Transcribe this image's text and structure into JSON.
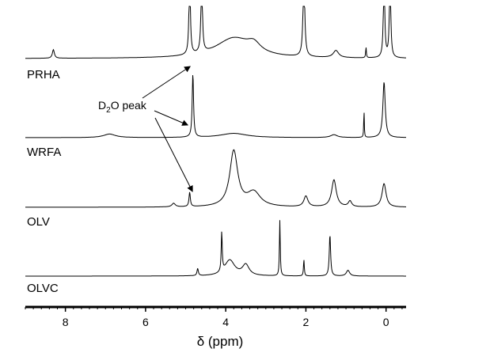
{
  "chart_data": {
    "type": "line",
    "title": "",
    "xlabel": "δ (ppm)",
    "ylabel": "",
    "xlim": [
      9.0,
      -0.5
    ],
    "x_reversed": true,
    "x_ticks": [
      8,
      6,
      4,
      2,
      0
    ],
    "x_tick_labels": [
      "8",
      "6",
      "4",
      "2",
      "0"
    ],
    "y_axis_shown": false,
    "grid": false,
    "legend": "none",
    "annotation": {
      "text_main": "D",
      "text_sub": "2",
      "text_rest": "O peak",
      "points_to_ppm": 4.79
    },
    "series": [
      {
        "name": "PRHA",
        "peaks": [
          {
            "ppm": 8.3,
            "height": 0.12,
            "width": 0.03
          },
          {
            "ppm": 4.9,
            "height": 1.2,
            "width": 0.02
          },
          {
            "ppm": 4.6,
            "height": 1.2,
            "width": 0.02
          },
          {
            "ppm": 3.8,
            "height": 0.28,
            "width": 0.55
          },
          {
            "ppm": 3.3,
            "height": 0.12,
            "width": 0.2
          },
          {
            "ppm": 2.05,
            "height": 1.2,
            "width": 0.025
          },
          {
            "ppm": 1.25,
            "height": 0.1,
            "width": 0.08
          },
          {
            "ppm": 0.5,
            "height": 0.15,
            "width": 0.01
          },
          {
            "ppm": 0.05,
            "height": 1.2,
            "width": 0.02
          },
          {
            "ppm": -0.1,
            "height": 1.2,
            "width": 0.02
          }
        ]
      },
      {
        "name": "WRFA",
        "peaks": [
          {
            "ppm": 6.9,
            "height": 0.05,
            "width": 0.18
          },
          {
            "ppm": 4.82,
            "height": 0.9,
            "width": 0.02
          },
          {
            "ppm": 3.8,
            "height": 0.06,
            "width": 0.4
          },
          {
            "ppm": 1.3,
            "height": 0.04,
            "width": 0.1
          },
          {
            "ppm": 0.55,
            "height": 0.4,
            "width": 0.008
          },
          {
            "ppm": 0.05,
            "height": 0.78,
            "width": 0.035
          }
        ]
      },
      {
        "name": "OLV",
        "peaks": [
          {
            "ppm": 5.3,
            "height": 0.05,
            "width": 0.05
          },
          {
            "ppm": 4.9,
            "height": 0.2,
            "width": 0.02
          },
          {
            "ppm": 3.8,
            "height": 0.78,
            "width": 0.12
          },
          {
            "ppm": 3.3,
            "height": 0.2,
            "width": 0.2
          },
          {
            "ppm": 2.0,
            "height": 0.15,
            "width": 0.06
          },
          {
            "ppm": 1.3,
            "height": 0.38,
            "width": 0.07
          },
          {
            "ppm": 0.9,
            "height": 0.08,
            "width": 0.05
          },
          {
            "ppm": 0.05,
            "height": 0.33,
            "width": 0.06
          }
        ]
      },
      {
        "name": "OLVC",
        "peaks": [
          {
            "ppm": 4.7,
            "height": 0.1,
            "width": 0.02
          },
          {
            "ppm": 4.1,
            "height": 0.55,
            "width": 0.015
          },
          {
            "ppm": 3.9,
            "height": 0.22,
            "width": 0.15
          },
          {
            "ppm": 3.5,
            "height": 0.15,
            "width": 0.1
          },
          {
            "ppm": 2.65,
            "height": 0.78,
            "width": 0.012
          },
          {
            "ppm": 2.05,
            "height": 0.23,
            "width": 0.012
          },
          {
            "ppm": 1.4,
            "height": 0.58,
            "width": 0.02
          },
          {
            "ppm": 0.95,
            "height": 0.08,
            "width": 0.05
          }
        ]
      }
    ]
  }
}
